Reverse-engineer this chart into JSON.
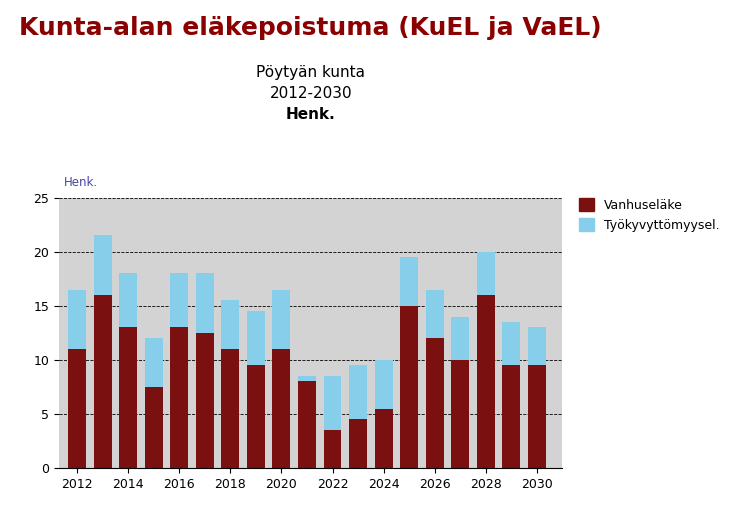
{
  "title": "Kunta-alan eläkepoistuma (KuEL ja VaEL)",
  "subtitle1": "Pöytyän kunta",
  "subtitle2": "2012-2030",
  "subtitle3": "Henk.",
  "ylabel_inside": "Henk.",
  "legend_labels": [
    "Vanhuseläke",
    "Työkyvyttömyysel."
  ],
  "bar_color_dark": "#7b1010",
  "bar_color_light": "#87ceeb",
  "background_color": "#d3d3d3",
  "years": [
    2012,
    2013,
    2014,
    2015,
    2016,
    2017,
    2018,
    2019,
    2020,
    2021,
    2022,
    2023,
    2024,
    2025,
    2026,
    2027,
    2028,
    2029,
    2030
  ],
  "vanhuselake": [
    11,
    16,
    13,
    7.5,
    13,
    12.5,
    11,
    9.5,
    11,
    8,
    3.5,
    4.5,
    5.5,
    15,
    12,
    10,
    16,
    9.5,
    9.5
  ],
  "tyokyvyttomyyselake": [
    5.5,
    5.5,
    5,
    4.5,
    5,
    5.5,
    4.5,
    5,
    5.5,
    0.5,
    5,
    5,
    4.5,
    4.5,
    4.5,
    4,
    4,
    4,
    3.5
  ],
  "ylim": [
    0,
    25
  ],
  "yticks": [
    0,
    5,
    10,
    15,
    20,
    25
  ],
  "xticks": [
    2012,
    2014,
    2016,
    2018,
    2020,
    2022,
    2024,
    2026,
    2028,
    2030
  ],
  "title_color": "#8b0000",
  "title_fontsize": 18,
  "subtitle_fontsize": 11,
  "tick_fontsize": 9,
  "bar_width": 0.7
}
